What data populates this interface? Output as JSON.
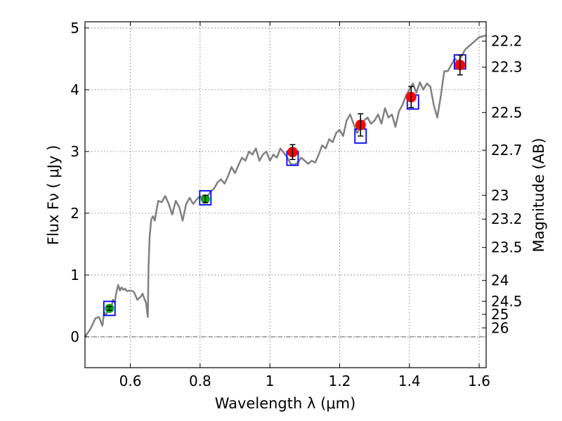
{
  "chart_data": {
    "type": "scatter",
    "xlabel": "Wavelength  λ (μm)",
    "ylabel": "Flux  Fν  ( μJy )",
    "ylabel_right": "Magnitude (AB)",
    "xlim": [
      0.47,
      1.62
    ],
    "ylim": [
      -0.5,
      5.1
    ],
    "x_ticks": [
      "0.6",
      "0.8",
      "1",
      "1.2",
      "1.4",
      "1.6"
    ],
    "x_tick_values": [
      0.6,
      0.8,
      1.0,
      1.2,
      1.4,
      1.6
    ],
    "y_ticks": [
      "0",
      "1",
      "2",
      "3",
      "4",
      "5"
    ],
    "y_tick_values": [
      0,
      1,
      2,
      3,
      4,
      5
    ],
    "mag_ticks": [
      "22.2",
      "22.3",
      "22.5",
      "22.7",
      "23",
      "23.2",
      "23.5",
      "24",
      "24.5",
      "25",
      "26"
    ],
    "mag_tick_values": [
      22.2,
      22.3,
      22.5,
      22.7,
      23,
      23.2,
      23.5,
      24,
      24.5,
      25,
      26
    ],
    "grid": true,
    "colors": {
      "model": "#808080",
      "model_photometry": "#0000ff",
      "obs_red": "#ff0000",
      "obs_green": "#00aa00",
      "zero_line": "#555555"
    },
    "model_spectrum": {
      "name": "",
      "x": [
        0.47,
        0.485,
        0.5,
        0.51,
        0.52,
        0.525,
        0.53,
        0.535,
        0.54,
        0.545,
        0.55,
        0.555,
        0.56,
        0.565,
        0.57,
        0.575,
        0.58,
        0.585,
        0.59,
        0.6,
        0.61,
        0.62,
        0.63,
        0.635,
        0.64,
        0.645,
        0.65,
        0.652,
        0.655,
        0.66,
        0.665,
        0.67,
        0.675,
        0.68,
        0.69,
        0.7,
        0.71,
        0.72,
        0.73,
        0.74,
        0.75,
        0.76,
        0.765,
        0.77,
        0.78,
        0.79,
        0.8,
        0.81,
        0.82,
        0.83,
        0.84,
        0.85,
        0.86,
        0.87,
        0.88,
        0.89,
        0.9,
        0.91,
        0.92,
        0.93,
        0.94,
        0.95,
        0.96,
        0.97,
        0.98,
        0.99,
        1.0,
        1.01,
        1.02,
        1.03,
        1.04,
        1.05,
        1.06,
        1.07,
        1.08,
        1.09,
        1.1,
        1.11,
        1.12,
        1.13,
        1.14,
        1.15,
        1.16,
        1.17,
        1.18,
        1.19,
        1.2,
        1.21,
        1.22,
        1.23,
        1.24,
        1.25,
        1.26,
        1.27,
        1.28,
        1.29,
        1.3,
        1.31,
        1.32,
        1.33,
        1.34,
        1.35,
        1.36,
        1.37,
        1.38,
        1.39,
        1.4,
        1.41,
        1.42,
        1.43,
        1.44,
        1.45,
        1.46,
        1.47,
        1.48,
        1.49,
        1.5,
        1.51,
        1.52,
        1.53,
        1.54,
        1.55,
        1.56,
        1.57,
        1.58,
        1.59,
        1.6,
        1.62
      ],
      "y": [
        0.0,
        0.12,
        0.3,
        0.32,
        0.18,
        0.4,
        0.35,
        0.42,
        0.5,
        0.44,
        0.6,
        0.55,
        0.72,
        0.84,
        0.75,
        0.8,
        0.76,
        0.78,
        0.74,
        0.75,
        0.73,
        0.6,
        0.65,
        0.7,
        0.62,
        0.55,
        0.32,
        1.1,
        1.6,
        1.9,
        1.95,
        1.88,
        2.05,
        2.2,
        2.18,
        2.28,
        2.15,
        1.98,
        2.2,
        2.1,
        1.88,
        2.15,
        2.2,
        2.25,
        2.15,
        2.22,
        2.28,
        2.2,
        2.26,
        2.35,
        2.4,
        2.5,
        2.55,
        2.48,
        2.6,
        2.75,
        2.65,
        2.78,
        2.9,
        2.85,
        3.0,
        2.95,
        3.05,
        2.85,
        2.95,
        3.0,
        2.85,
        2.95,
        2.9,
        3.05,
        2.98,
        2.9,
        2.8,
        2.78,
        2.82,
        2.9,
        2.85,
        2.8,
        2.85,
        2.82,
        2.95,
        3.1,
        3.05,
        3.2,
        3.15,
        3.3,
        3.35,
        3.25,
        3.5,
        3.6,
        3.45,
        3.3,
        3.4,
        3.5,
        3.55,
        3.45,
        3.5,
        3.6,
        3.45,
        3.7,
        3.55,
        3.6,
        3.4,
        3.65,
        3.75,
        3.9,
        4.0,
        4.1,
        3.95,
        4.12,
        4.0,
        4.1,
        4.05,
        3.75,
        3.55,
        3.9,
        4.3,
        4.3,
        4.4,
        4.5,
        4.45,
        4.55,
        4.65,
        4.7,
        4.75,
        4.8,
        4.85,
        4.88
      ]
    },
    "model_photometry": {
      "name": "",
      "x": [
        0.54,
        0.815,
        1.065,
        1.26,
        1.41,
        1.545
      ],
      "y": [
        0.46,
        2.25,
        2.89,
        3.25,
        3.8,
        4.45
      ]
    },
    "observed": {
      "name": "",
      "x": [
        0.54,
        0.815,
        1.065,
        1.26,
        1.405,
        1.545
      ],
      "y": [
        0.46,
        2.23,
        2.99,
        3.43,
        3.88,
        4.4
      ],
      "yerr": [
        0.03,
        0.06,
        0.12,
        0.18,
        0.17,
        0.16
      ],
      "color_keys": [
        "obs_green",
        "obs_green",
        "obs_red",
        "obs_red",
        "obs_red",
        "obs_red"
      ]
    }
  }
}
